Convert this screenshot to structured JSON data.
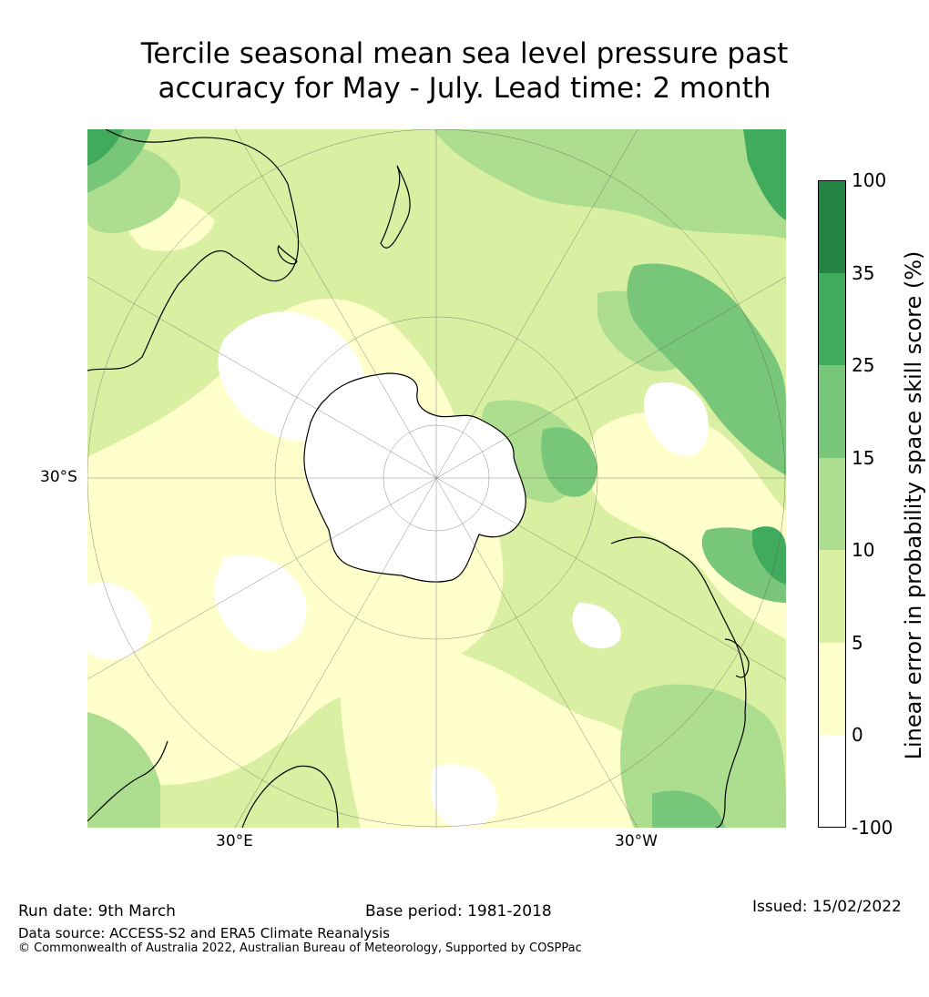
{
  "title_line1": "Tercile seasonal mean sea level pressure past",
  "title_line2": "accuracy for May - July. Lead time: 2 month",
  "map": {
    "projection": "south-polar-stereographic",
    "graticule_labels": {
      "lat": "30°S",
      "lon_east": "30°E",
      "lon_west": "30°W"
    }
  },
  "colorbar": {
    "title": "Linear error in probability space skill score (%)",
    "bins": [
      {
        "from": "-100",
        "to": "0",
        "color": "#ffffff"
      },
      {
        "from": "0",
        "to": "5",
        "color": "#ffffcc"
      },
      {
        "from": "5",
        "to": "10",
        "color": "#d9f0a3"
      },
      {
        "from": "10",
        "to": "15",
        "color": "#addd8e"
      },
      {
        "from": "15",
        "to": "25",
        "color": "#78c679"
      },
      {
        "from": "25",
        "to": "35",
        "color": "#41ab5d"
      },
      {
        "from": "35",
        "to": "100",
        "color": "#238443"
      }
    ],
    "ticks": [
      "100",
      "35",
      "25",
      "15",
      "10",
      "5",
      "0",
      "-100"
    ]
  },
  "footer": {
    "run_date": "Run date: 9th March",
    "base_period": "Base period: 1981-2018",
    "issued": "Issued: 15/02/2022",
    "data_source": "Data source: ACCESS-S2 and ERA5 Climate Reanalysis",
    "copyright": "© Commonwealth of Australia 2022, Australian Bureau of Meteorology, Supported by COSPPac"
  }
}
